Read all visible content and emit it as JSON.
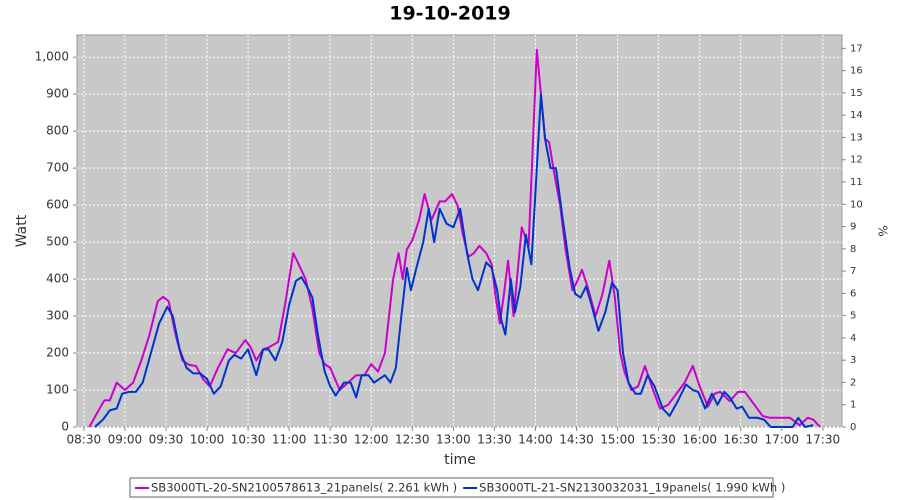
{
  "chart_data": {
    "type": "line",
    "title": "19-10-2019",
    "x_label": "time",
    "y_label": "Watt",
    "y2_label": "%",
    "xlim": [
      "08:25",
      "17:44"
    ],
    "xticks": [
      "08:30",
      "09:00",
      "09:30",
      "10:00",
      "10:30",
      "11:00",
      "11:30",
      "12:00",
      "12:30",
      "13:00",
      "13:30",
      "14:00",
      "14:30",
      "15:00",
      "15:30",
      "16:00",
      "16:30",
      "17:00",
      "17:30"
    ],
    "ylim": [
      0,
      1060
    ],
    "yticks": [
      0,
      100,
      200,
      300,
      400,
      500,
      600,
      700,
      800,
      900,
      {
        "value": 1000,
        "label": "1,000"
      }
    ],
    "y2lim": [
      0,
      17.6
    ],
    "y2ticks": [
      0,
      1,
      2,
      3,
      4,
      5,
      6,
      7,
      8,
      9,
      10,
      11,
      12,
      13,
      14,
      15,
      16,
      17
    ],
    "grid": true,
    "legend": "bottom",
    "series": [
      {
        "name": "SB3000TL-20-SN2100578613_21panels( 2.261 kWh )",
        "color": "#cc00cc",
        "x": [
          "08:34",
          "08:40",
          "08:45",
          "08:49",
          "08:54",
          "09:00",
          "09:06",
          "09:12",
          "09:18",
          "09:24",
          "09:28",
          "09:32",
          "09:37",
          "09:42",
          "09:47",
          "09:52",
          "09:57",
          "10:02",
          "10:08",
          "10:15",
          "10:21",
          "10:28",
          "10:32",
          "10:36",
          "10:41",
          "10:45",
          "10:52",
          "10:57",
          "11:03",
          "11:07",
          "11:12",
          "11:17",
          "11:22",
          "11:26",
          "11:30",
          "11:37",
          "11:43",
          "11:49",
          "11:55",
          "12:00",
          "12:05",
          "12:10",
          "12:16",
          "12:20",
          "12:23",
          "12:26",
          "12:30",
          "12:35",
          "12:39",
          "12:44",
          "12:50",
          "12:54",
          "12:59",
          "13:03",
          "13:07",
          "13:11",
          "13:15",
          "13:19",
          "13:24",
          "13:28",
          "13:31",
          "13:34",
          "13:37",
          "13:40",
          "13:44",
          "13:47",
          "13:50",
          "13:55",
          "14:01",
          "14:04",
          "14:07",
          "14:10",
          "14:14",
          "14:18",
          "14:22",
          "14:27",
          "14:30",
          "14:34",
          "14:38",
          "14:44",
          "14:49",
          "14:54",
          "14:58",
          "15:02",
          "15:05",
          "15:10",
          "15:15",
          "15:20",
          "15:25",
          "15:31",
          "15:37",
          "15:43",
          "15:49",
          "15:55",
          "16:00",
          "16:06",
          "16:11",
          "16:15",
          "16:22",
          "16:28",
          "16:33",
          "16:40",
          "16:46",
          "16:51",
          "17:00",
          "17:06",
          "17:13",
          "17:19",
          "17:23",
          "17:28"
        ],
        "values": [
          0,
          40,
          72,
          72,
          120,
          100,
          120,
          180,
          250,
          340,
          352,
          340,
          250,
          180,
          168,
          165,
          130,
          110,
          160,
          210,
          200,
          235,
          215,
          180,
          210,
          215,
          230,
          330,
          470,
          440,
          400,
          320,
          200,
          170,
          160,
          100,
          120,
          140,
          140,
          170,
          150,
          200,
          400,
          470,
          400,
          480,
          505,
          560,
          630,
          560,
          610,
          610,
          630,
          600,
          520,
          460,
          470,
          490,
          470,
          440,
          350,
          280,
          360,
          450,
          300,
          420,
          540,
          490,
          1020,
          900,
          780,
          770,
          680,
          600,
          480,
          370,
          390,
          425,
          380,
          300,
          360,
          450,
          350,
          200,
          150,
          100,
          110,
          165,
          110,
          50,
          60,
          90,
          120,
          165,
          110,
          55,
          90,
          95,
          70,
          95,
          95,
          60,
          30,
          25,
          25,
          25,
          5,
          25,
          20,
          0
        ]
      },
      {
        "name": "SB3000TL-21-SN2130032031_19panels( 1.990 kWh )",
        "color": "#0033cc",
        "x": [
          "08:38",
          "08:44",
          "08:49",
          "08:54",
          "08:58",
          "09:03",
          "09:08",
          "09:13",
          "09:19",
          "09:25",
          "09:31",
          "09:35",
          "09:40",
          "09:45",
          "09:50",
          "09:55",
          "10:00",
          "10:05",
          "10:10",
          "10:16",
          "10:20",
          "10:25",
          "10:30",
          "10:36",
          "10:41",
          "10:45",
          "10:50",
          "10:55",
          "11:00",
          "11:05",
          "11:09",
          "11:13",
          "11:17",
          "11:21",
          "11:26",
          "11:30",
          "11:34",
          "11:40",
          "11:45",
          "11:49",
          "11:53",
          "11:58",
          "12:02",
          "12:06",
          "12:10",
          "12:14",
          "12:18",
          "12:22",
          "12:26",
          "12:29",
          "12:33",
          "12:38",
          "12:42",
          "12:46",
          "12:50",
          "12:55",
          "13:00",
          "13:05",
          "13:10",
          "13:14",
          "13:18",
          "13:24",
          "13:28",
          "13:32",
          "13:35",
          "13:38",
          "13:42",
          "13:45",
          "13:49",
          "13:53",
          "13:57",
          "14:01",
          "14:04",
          "14:07",
          "14:11",
          "14:15",
          "14:20",
          "14:25",
          "14:29",
          "14:33",
          "14:37",
          "14:41",
          "14:46",
          "14:51",
          "14:56",
          "15:00",
          "15:04",
          "15:08",
          "15:13",
          "15:17",
          "15:22",
          "15:27",
          "15:33",
          "15:38",
          "15:44",
          "15:50",
          "15:55",
          "15:59",
          "16:04",
          "16:09",
          "16:13",
          "16:18",
          "16:22",
          "16:27",
          "16:31",
          "16:36",
          "16:42",
          "16:47",
          "16:52",
          "17:02",
          "17:08",
          "17:12",
          "17:17",
          "17:23"
        ],
        "values": [
          0,
          20,
          45,
          50,
          90,
          95,
          95,
          120,
          200,
          280,
          325,
          300,
          210,
          160,
          145,
          145,
          130,
          90,
          110,
          180,
          195,
          185,
          210,
          140,
          210,
          210,
          180,
          230,
          330,
          395,
          405,
          380,
          350,
          250,
          150,
          110,
          85,
          120,
          120,
          80,
          140,
          140,
          120,
          130,
          140,
          120,
          160,
          300,
          430,
          370,
          430,
          500,
          590,
          500,
          590,
          550,
          540,
          590,
          470,
          400,
          370,
          445,
          430,
          370,
          290,
          250,
          400,
          310,
          380,
          520,
          440,
          700,
          900,
          780,
          700,
          700,
          560,
          430,
          360,
          350,
          380,
          330,
          260,
          310,
          390,
          370,
          200,
          120,
          90,
          90,
          140,
          110,
          50,
          30,
          70,
          115,
          100,
          95,
          50,
          90,
          60,
          95,
          80,
          50,
          55,
          25,
          25,
          20,
          0,
          0,
          0,
          25,
          0,
          5
        ]
      }
    ]
  }
}
